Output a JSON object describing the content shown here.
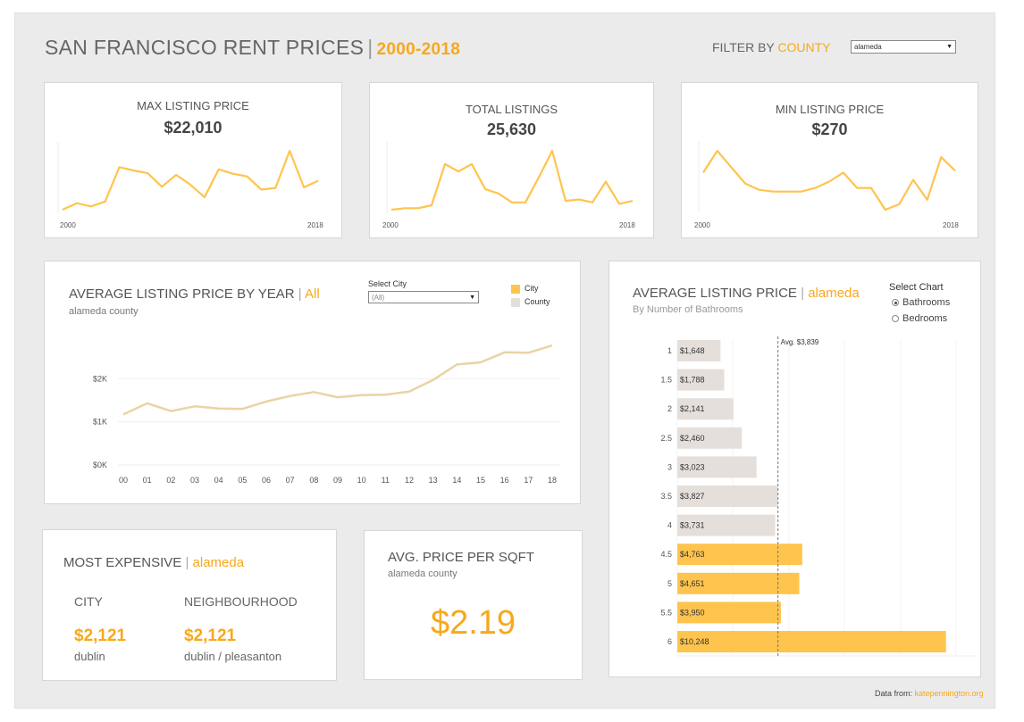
{
  "header": {
    "title": "SAN FRANCISCO RENT PRICES",
    "separator": "|",
    "range": "2000-2018",
    "filter_prefix": "FILTER BY",
    "filter_word": "COUNTY",
    "county_selected": "alameda"
  },
  "kpis": [
    {
      "label": "MAX LISTING PRICE",
      "value": "$22,010",
      "x_start": "2000",
      "x_end": "2018"
    },
    {
      "label": "TOTAL LISTINGS",
      "value": "25,630",
      "x_start": "2000",
      "x_end": "2018"
    },
    {
      "label": "MIN LISTING PRICE",
      "value": "$270",
      "x_start": "2000",
      "x_end": "2018"
    }
  ],
  "line_section": {
    "title": "AVERAGE LISTING PRICE BY YEAR",
    "sep": "|",
    "title_accent": "All",
    "subtitle": "alameda county",
    "select_label": "Select City",
    "select_value": "(All)",
    "legend": [
      {
        "name": "City",
        "color": "#ffc44d"
      },
      {
        "name": "County",
        "color": "#e5dfdb"
      }
    ]
  },
  "bar_section": {
    "title": "AVERAGE LISTING PRICE",
    "sep": "|",
    "title_accent": "alameda",
    "subtitle": "By Number of Bathrooms",
    "select_label": "Select Chart",
    "options": [
      "Bathrooms",
      "Bedrooms"
    ],
    "selected_option": "Bathrooms",
    "avg_label": "Avg. $3,839"
  },
  "most_expensive": {
    "title": "MOST EXPENSIVE",
    "sep": "|",
    "title_accent": "alameda",
    "city_header": "CITY",
    "neigh_header": "NEIGHBOURHOOD",
    "city_value": "$2,121",
    "city_name": "dublin",
    "neigh_value": "$2,121",
    "neigh_name": "dublin / pleasanton"
  },
  "sqft": {
    "title": "AVG. PRICE PER SQFT",
    "subtitle": "alameda  county",
    "value": "$2.19"
  },
  "footer": {
    "prefix": "Data from:",
    "source": "katepennington.org"
  },
  "chart_data": [
    {
      "type": "line",
      "x": [
        2000,
        2001,
        2002,
        2003,
        2004,
        2005,
        2006,
        2007,
        2008,
        2009,
        2010,
        2011,
        2012,
        2013,
        2014,
        2015,
        2016,
        2017,
        2018
      ],
      "series": [
        {
          "values": [
            2000,
            3200,
            2600,
            3500,
            9800,
            9200,
            8700,
            6200,
            8400,
            6600,
            4300,
            9400,
            8600,
            8100,
            5700,
            6000,
            12800,
            6100,
            7300
          ]
        }
      ]
    },
    {
      "type": "line",
      "x": [
        2000,
        2001,
        2002,
        2003,
        2004,
        2005,
        2006,
        2007,
        2008,
        2009,
        2010,
        2011,
        2012,
        2013,
        2014,
        2015,
        2016,
        2017,
        2018
      ],
      "series": [
        {
          "values": [
            200,
            300,
            300,
            500,
            3300,
            2800,
            3300,
            1600,
            1300,
            700,
            700,
            2400,
            4200,
            800,
            900,
            700,
            2100,
            600,
            800
          ]
        }
      ]
    },
    {
      "type": "line",
      "x": [
        2000,
        2001,
        2002,
        2003,
        2004,
        2005,
        2006,
        2007,
        2008,
        2009,
        2010,
        2011,
        2012,
        2013,
        2014,
        2015,
        2016,
        2017,
        2018
      ],
      "series": [
        {
          "values": [
            900,
            1140,
            960,
            780,
            710,
            690,
            690,
            690,
            730,
            800,
            900,
            730,
            730,
            490,
            550,
            820,
            600,
            1070,
            920
          ]
        }
      ]
    },
    {
      "type": "line",
      "x": [
        "00",
        "01",
        "02",
        "03",
        "04",
        "05",
        "06",
        "07",
        "08",
        "09",
        "10",
        "11",
        "12",
        "13",
        "14",
        "15",
        "16",
        "17",
        "18"
      ],
      "y_ticks": [
        "$0K",
        "$1K",
        "$2K"
      ],
      "ylim": [
        0,
        3000
      ],
      "series": [
        {
          "name": "County",
          "values": [
            1170,
            1430,
            1250,
            1360,
            1310,
            1300,
            1470,
            1600,
            1690,
            1570,
            1620,
            1630,
            1700,
            1970,
            2330,
            2380,
            2610,
            2600,
            2770
          ]
        }
      ]
    },
    {
      "type": "bar",
      "orientation": "horizontal",
      "categories": [
        "1",
        "1.5",
        "2",
        "2.5",
        "3",
        "3.5",
        "4",
        "4.5",
        "5",
        "5.5",
        "6"
      ],
      "values": [
        1648,
        1788,
        2141,
        2460,
        3023,
        3827,
        3731,
        4763,
        4651,
        3950,
        10248
      ],
      "labels": [
        "$1,648",
        "$1,788",
        "$2,141",
        "$2,460",
        "$3,023",
        "$3,827",
        "$3,731",
        "$4,763",
        "$4,651",
        "$3,950",
        "$10,248"
      ],
      "average": 3839,
      "xlim": [
        0,
        10700
      ],
      "colors": {
        "below_avg": "#e5dfdb",
        "above_avg": "#ffc44d"
      }
    }
  ]
}
